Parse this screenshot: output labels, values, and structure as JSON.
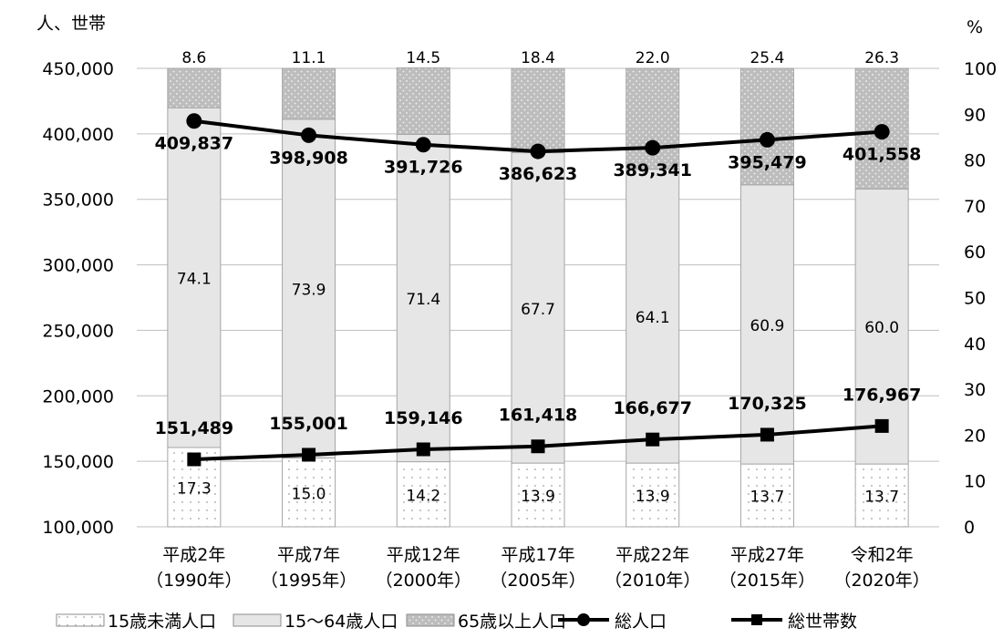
{
  "chart_data": {
    "type": "bar",
    "left_axis_title": "人、世帯",
    "right_axis_title": "%",
    "left_ylim": [
      100000,
      450000
    ],
    "left_ticks": [
      "100,000",
      "150,000",
      "200,000",
      "250,000",
      "300,000",
      "350,000",
      "400,000",
      "450,000"
    ],
    "right_ylim": [
      0,
      100
    ],
    "right_ticks": [
      "0",
      "10",
      "20",
      "30",
      "40",
      "50",
      "60",
      "70",
      "80",
      "90",
      "100"
    ],
    "categories": [
      {
        "line1": "平成2年",
        "line2": "（1990年）"
      },
      {
        "line1": "平成7年",
        "line2": "（1995年）"
      },
      {
        "line1": "平成12年",
        "line2": "（2000年）"
      },
      {
        "line1": "平成17年",
        "line2": "（2005年）"
      },
      {
        "line1": "平成22年",
        "line2": "（2010年）"
      },
      {
        "line1": "平成27年",
        "line2": "（2015年）"
      },
      {
        "line1": "令和2年",
        "line2": "（2020年）"
      }
    ],
    "stacked_series": [
      {
        "name": "15歳未満人口",
        "color": "#ffffff",
        "values": [
          17.3,
          15.0,
          14.2,
          13.9,
          13.9,
          13.7,
          13.7
        ],
        "labels": [
          "17.3",
          "15.0",
          "14.2",
          "13.9",
          "13.9",
          "13.7",
          "13.7"
        ]
      },
      {
        "name": "15～64歳人口",
        "color": "#e6e6e6",
        "values": [
          74.1,
          73.9,
          71.4,
          67.7,
          64.1,
          60.9,
          60.0
        ],
        "labels": [
          "74.1",
          "73.9",
          "71.4",
          "67.7",
          "64.1",
          "60.9",
          "60.0"
        ]
      },
      {
        "name": "65歳以上人口",
        "color": "#bdbdbd",
        "values": [
          8.6,
          11.1,
          14.5,
          18.4,
          22.0,
          25.4,
          26.3
        ],
        "labels": [
          "8.6",
          "11.1",
          "14.5",
          "18.4",
          "22.0",
          "25.4",
          "26.3"
        ]
      }
    ],
    "line_series": [
      {
        "name": "総人口",
        "marker": "circle",
        "values": [
          409837,
          398908,
          391726,
          386623,
          389341,
          395479,
          401558
        ],
        "labels": [
          "409,837",
          "398,908",
          "391,726",
          "386,623",
          "389,341",
          "395,479",
          "401,558"
        ]
      },
      {
        "name": "総世帯数",
        "marker": "square",
        "values": [
          151489,
          155001,
          159146,
          161418,
          166677,
          170325,
          176967
        ],
        "labels": [
          "151,489",
          "155,001",
          "159,146",
          "161,418",
          "166,677",
          "170,325",
          "176,967"
        ]
      }
    ],
    "colors": {
      "line": "#000000",
      "grid": "#bfbfbf",
      "bar_border": "#a6a6a6"
    }
  }
}
